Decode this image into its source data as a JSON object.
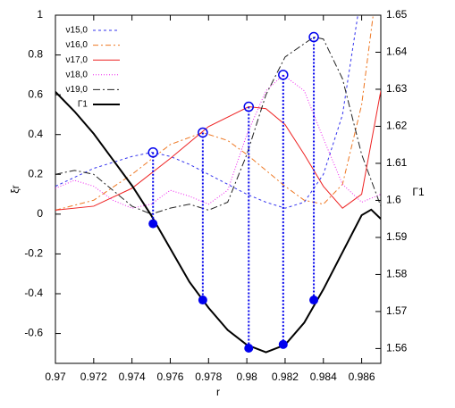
{
  "chart_data": {
    "type": "line",
    "xlabel": "r",
    "ylabel": "ξr",
    "y2label": "Γ1",
    "xlim": [
      0.97,
      0.987
    ],
    "xticks": [
      0.97,
      0.972,
      0.974,
      0.976,
      0.978,
      0.98,
      0.982,
      0.984,
      0.986
    ],
    "ylim": [
      -0.75,
      1
    ],
    "yticks": [
      -0.6,
      -0.4,
      -0.2,
      0,
      0.2,
      0.4,
      0.6,
      0.8,
      1
    ],
    "y2lim": [
      1.556,
      1.65
    ],
    "y2ticks": [
      1.56,
      1.57,
      1.58,
      1.59,
      1.6,
      1.61,
      1.62,
      1.63,
      1.64,
      1.65
    ],
    "legend": "upper left",
    "series": [
      {
        "name": "ν15,0",
        "color": "#3333ee",
        "style": "dashed",
        "x": [
          0.97,
          0.972,
          0.974,
          0.975,
          0.9751,
          0.976,
          0.977,
          0.978,
          0.979,
          0.98,
          0.981,
          0.982,
          0.983,
          0.984,
          0.985,
          0.9858
        ],
        "values": [
          0.14,
          0.23,
          0.29,
          0.31,
          0.31,
          0.29,
          0.25,
          0.2,
          0.15,
          0.1,
          0.06,
          0.03,
          0.06,
          0.2,
          0.5,
          1.0
        ]
      },
      {
        "name": "ν16,0",
        "color": "#ee7722",
        "style": "dash-dot",
        "x": [
          0.97,
          0.972,
          0.974,
          0.976,
          0.9777,
          0.979,
          0.98,
          0.981,
          0.982,
          0.983,
          0.984,
          0.985,
          0.986,
          0.9866
        ],
        "values": [
          0.02,
          0.07,
          0.2,
          0.35,
          0.41,
          0.37,
          0.3,
          0.22,
          0.14,
          0.07,
          0.05,
          0.15,
          0.55,
          1.0
        ]
      },
      {
        "name": "ν17,0",
        "color": "#ee2222",
        "style": "solid",
        "x": [
          0.97,
          0.972,
          0.974,
          0.976,
          0.978,
          0.9801,
          0.981,
          0.982,
          0.983,
          0.984,
          0.985,
          0.986,
          0.987
        ],
        "values": [
          0.02,
          0.04,
          0.13,
          0.28,
          0.44,
          0.54,
          0.53,
          0.45,
          0.3,
          0.14,
          0.03,
          0.1,
          0.62
        ]
      },
      {
        "name": "ν18,0",
        "color": "#ee22ee",
        "style": "dotted",
        "x": [
          0.97,
          0.971,
          0.972,
          0.973,
          0.974,
          0.975,
          0.976,
          0.977,
          0.978,
          0.979,
          0.98,
          0.981,
          0.9819,
          0.983,
          0.984,
          0.985,
          0.986,
          0.987
        ],
        "values": [
          0.13,
          0.17,
          0.14,
          0.07,
          0.03,
          0.05,
          0.12,
          0.09,
          0.05,
          0.12,
          0.4,
          0.62,
          0.7,
          0.62,
          0.38,
          0.15,
          0.06,
          0.1
        ]
      },
      {
        "name": "ν19,0",
        "color": "#222222",
        "style": "long-dash-dot",
        "x": [
          0.97,
          0.971,
          0.972,
          0.973,
          0.974,
          0.975,
          0.976,
          0.977,
          0.978,
          0.979,
          0.98,
          0.981,
          0.982,
          0.9835,
          0.984,
          0.985,
          0.986,
          0.987
        ],
        "values": [
          0.2,
          0.22,
          0.2,
          0.12,
          0.04,
          0.0,
          0.03,
          0.05,
          0.02,
          0.06,
          0.3,
          0.6,
          0.79,
          0.89,
          0.88,
          0.68,
          0.3,
          0.04
        ]
      },
      {
        "name": "Γ1",
        "color": "#000000",
        "style": "thick",
        "axis": "y2",
        "x": [
          0.97,
          0.971,
          0.972,
          0.973,
          0.974,
          0.975,
          0.976,
          0.977,
          0.978,
          0.979,
          0.98,
          0.981,
          0.982,
          0.983,
          0.984,
          0.985,
          0.986,
          0.9865,
          0.987
        ],
        "values": [
          1.6293,
          1.624,
          1.618,
          1.611,
          1.604,
          1.596,
          1.587,
          1.578,
          1.571,
          1.565,
          1.561,
          1.559,
          1.561,
          1.567,
          1.576,
          1.586,
          1.596,
          1.5975,
          1.595
        ]
      }
    ],
    "markers": {
      "color": "#0000ee",
      "x": [
        0.9751,
        0.9777,
        0.9801,
        0.9819,
        0.9835
      ],
      "nu": [
        0.31,
        0.41,
        0.54,
        0.7,
        0.89
      ],
      "gamma": [
        1.5937,
        1.5731,
        1.5601,
        1.5611,
        1.5731
      ]
    }
  }
}
